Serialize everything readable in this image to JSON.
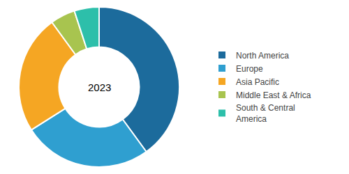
{
  "chart_data": {
    "type": "pie",
    "categories": [
      "North America",
      "Europe",
      "Asia Pacific",
      "Middle East & Africa",
      "South & Central\n  America"
    ],
    "values": [
      40,
      26,
      24,
      5,
      5
    ],
    "colors": [
      "#1c6b9c",
      "#2f9fd0",
      "#f5a623",
      "#a8c44f",
      "#2dbfaa"
    ],
    "annotations": [
      "2023"
    ],
    "legend": "right"
  }
}
